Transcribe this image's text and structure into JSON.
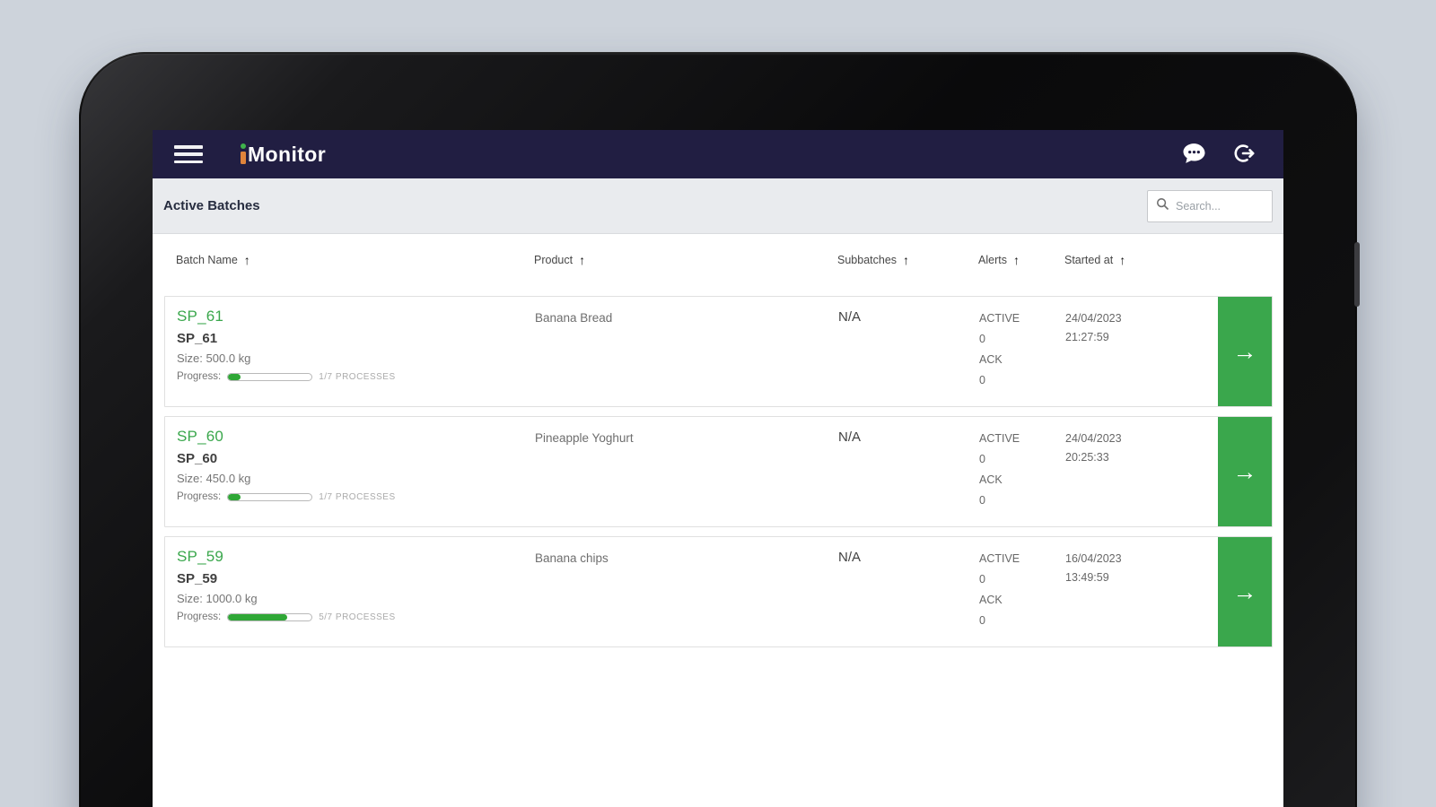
{
  "app": {
    "title": "iMonitor",
    "title_monitor_part": "Monitor"
  },
  "toolbar": {
    "title": "Active Batches",
    "search": {
      "placeholder": "Search..."
    }
  },
  "table": {
    "sort_arrow": "↑",
    "row_arrow": "→",
    "columns": [
      {
        "label": "Batch Name"
      },
      {
        "label": "Product"
      },
      {
        "label": "Subbatches"
      },
      {
        "label": "Alerts"
      },
      {
        "label": "Started at"
      }
    ],
    "rows": [
      {
        "batch_link": "SP_61",
        "batch_name": "SP_61",
        "size": "Size: 500.0 kg",
        "progress_label": "Progress:",
        "progress_percent": 15,
        "progress_caption": "1/7 PROCESSES",
        "product": "Banana Bread",
        "subbatches": "N/A",
        "alerts": {
          "active_label": "ACTIVE",
          "active_count": "0",
          "ack_label": "ACK",
          "ack_count": "0"
        },
        "started_date": "24/04/2023",
        "started_time": "21:27:59"
      },
      {
        "batch_link": "SP_60",
        "batch_name": "SP_60",
        "size": "Size: 450.0 kg",
        "progress_label": "Progress:",
        "progress_percent": 15,
        "progress_caption": "1/7 PROCESSES",
        "product": "Pineapple Yoghurt",
        "subbatches": "N/A",
        "alerts": {
          "active_label": "ACTIVE",
          "active_count": "0",
          "ack_label": "ACK",
          "ack_count": "0"
        },
        "started_date": "24/04/2023",
        "started_time": "20:25:33"
      },
      {
        "batch_link": "SP_59",
        "batch_name": "SP_59",
        "size": "Size: 1000.0 kg",
        "progress_label": "Progress:",
        "progress_percent": 71,
        "progress_caption": "5/7 PROCESSES",
        "product": "Banana chips",
        "subbatches": "N/A",
        "alerts": {
          "active_label": "ACTIVE",
          "active_count": "0",
          "ack_label": "ACK",
          "ack_count": "0"
        },
        "started_date": "16/04/2023",
        "started_time": "13:49:59"
      }
    ]
  },
  "colors": {
    "accent_green": "#3aa74c",
    "appbar_navy": "#211e42",
    "page_bg": "#cdd3db"
  }
}
